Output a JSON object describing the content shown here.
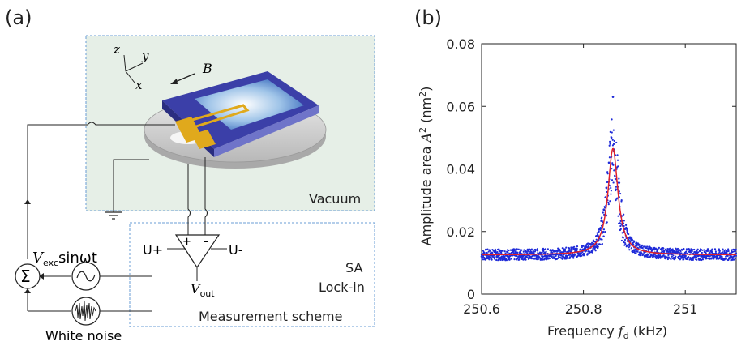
{
  "panel_a": {
    "label": "(a)",
    "vacuum_label": "Vacuum",
    "measurement_label": "Measurement scheme",
    "sa_label": "SA",
    "lockin_label": "Lock-in",
    "u_plus": "U+",
    "u_minus": "U-",
    "plus_sign": "+",
    "minus_sign": "–",
    "vout_main": "V",
    "vout_sub": "out",
    "vexc_main": "V",
    "vexc_sub": "exc",
    "vexc_rest": "sinωt",
    "white_noise": "White noise",
    "sum_symbol": "Σ",
    "axis_z": "z",
    "axis_y": "y",
    "axis_x": "x",
    "field_b": "B",
    "colors": {
      "vacuum_fill": "#e6efe7",
      "box_border": "#6a9ed6",
      "chip_blue": "#3b3fa8",
      "gold": "#e0a91c"
    }
  },
  "panel_b": {
    "label": "(b)",
    "ylabel_main": "Amplitude area ",
    "ylabel_var": "A",
    "ylabel_sup": "2",
    "ylabel_unit": " (nm",
    "ylabel_unit_sup": "2",
    "ylabel_close": ")",
    "xlabel_main": "Frequency ",
    "xlabel_var": "f",
    "xlabel_sub": "d",
    "xlabel_unit": " (kHz)"
  },
  "chart_data": {
    "type": "scatter",
    "xlim": [
      250.6,
      251.1
    ],
    "ylim": [
      0,
      0.08
    ],
    "xticks": [
      250.6,
      250.8,
      251
    ],
    "xtick_labels": [
      "250.6",
      "250.8",
      "251"
    ],
    "yticks": [
      0,
      0.02,
      0.04,
      0.06,
      0.08
    ],
    "ytick_labels": [
      "0",
      "0.02",
      "0.04",
      "0.06",
      "0.08"
    ],
    "series": [
      {
        "kind": "data",
        "color": "#1f2bd8",
        "noisy_baseline": 0.0127,
        "peak_x": 250.858,
        "peak_y": 0.063,
        "points": [
          [
            250.6,
            0.012
          ],
          [
            250.62,
            0.013
          ],
          [
            250.64,
            0.012
          ],
          [
            250.66,
            0.014
          ],
          [
            250.68,
            0.012
          ],
          [
            250.7,
            0.013
          ],
          [
            250.72,
            0.012
          ],
          [
            250.74,
            0.014
          ],
          [
            250.76,
            0.013
          ],
          [
            250.78,
            0.012
          ],
          [
            250.8,
            0.014
          ],
          [
            250.81,
            0.015
          ],
          [
            250.82,
            0.016
          ],
          [
            250.83,
            0.02
          ],
          [
            250.84,
            0.027
          ],
          [
            250.845,
            0.034
          ],
          [
            250.85,
            0.042
          ],
          [
            250.855,
            0.05
          ],
          [
            250.858,
            0.063
          ],
          [
            250.86,
            0.048
          ],
          [
            250.865,
            0.04
          ],
          [
            250.87,
            0.031
          ],
          [
            250.875,
            0.025
          ],
          [
            250.88,
            0.02
          ],
          [
            250.89,
            0.017
          ],
          [
            250.9,
            0.015
          ],
          [
            250.92,
            0.014
          ],
          [
            250.94,
            0.013
          ],
          [
            250.96,
            0.012
          ],
          [
            250.98,
            0.013
          ],
          [
            251.0,
            0.012
          ],
          [
            251.02,
            0.013
          ],
          [
            251.04,
            0.012
          ],
          [
            251.06,
            0.013
          ],
          [
            251.08,
            0.012
          ],
          [
            251.1,
            0.013
          ]
        ]
      },
      {
        "kind": "fit",
        "color": "#e0202a",
        "baseline": 0.0125,
        "center": 250.858,
        "amplitude": 0.034,
        "hwhm": 0.012
      }
    ]
  }
}
